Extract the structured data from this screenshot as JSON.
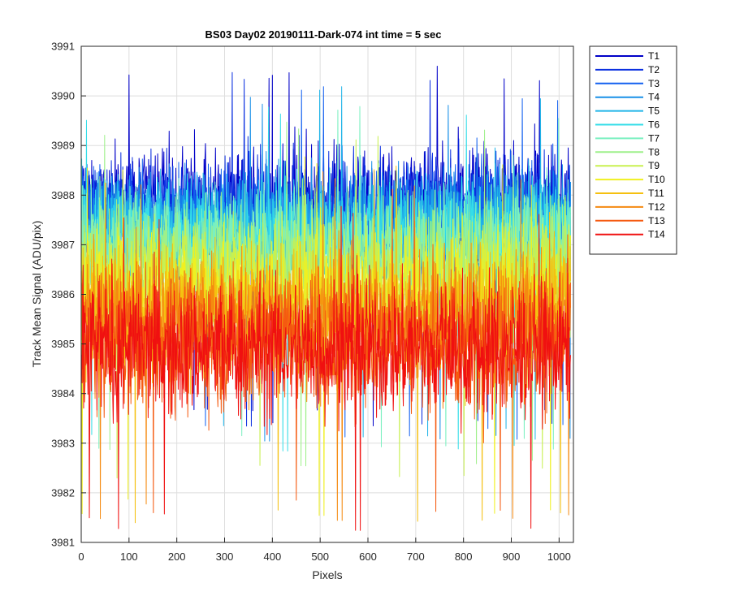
{
  "chart_data": {
    "type": "line",
    "title": "BS03 Day02 20190111-Dark-074 int time = 5 sec",
    "xlabel": "Pixels",
    "ylabel": "Track Mean Signal (ADU/pix)",
    "xlim": [
      0,
      1030
    ],
    "ylim": [
      3981,
      3991
    ],
    "xticks": [
      0,
      100,
      200,
      300,
      400,
      500,
      600,
      700,
      800,
      900,
      1000
    ],
    "yticks": [
      3981,
      3982,
      3983,
      3984,
      3985,
      3986,
      3987,
      3988,
      3989,
      3990,
      3991
    ],
    "grid": true,
    "legend_position": "outside-top-right",
    "x": {
      "start": 1,
      "end": 1024,
      "step": 1
    },
    "series": [
      {
        "name": "T1",
        "color": "#0000c8",
        "mean": 3987.9,
        "spread": 0.55,
        "min": 3983.3,
        "max": 3990.6
      },
      {
        "name": "T2",
        "color": "#0a2fe0",
        "mean": 3987.7,
        "spread": 0.55,
        "min": 3983.3,
        "max": 3990.5
      },
      {
        "name": "T3",
        "color": "#1260f0",
        "mean": 3987.5,
        "spread": 0.55,
        "min": 3983.0,
        "max": 3990.2
      },
      {
        "name": "T4",
        "color": "#1990e8",
        "mean": 3987.4,
        "spread": 0.55,
        "min": 3983.0,
        "max": 3990.0
      },
      {
        "name": "T5",
        "color": "#20b4e8",
        "mean": 3987.3,
        "spread": 0.55,
        "min": 3983.0,
        "max": 3990.2
      },
      {
        "name": "T6",
        "color": "#35dde8",
        "mean": 3987.2,
        "spread": 0.55,
        "min": 3982.8,
        "max": 3989.8
      },
      {
        "name": "T7",
        "color": "#7af0c0",
        "mean": 3987.0,
        "spread": 0.6,
        "min": 3982.8,
        "max": 3989.8
      },
      {
        "name": "T8",
        "color": "#9ef08a",
        "mean": 3986.7,
        "spread": 0.6,
        "min": 3982.5,
        "max": 3989.5
      },
      {
        "name": "T9",
        "color": "#c8f050",
        "mean": 3986.4,
        "spread": 0.6,
        "min": 3982.2,
        "max": 3989.2
      },
      {
        "name": "T10",
        "color": "#f0f020",
        "mean": 3986.0,
        "spread": 0.65,
        "min": 3981.5,
        "max": 3988.8
      },
      {
        "name": "T11",
        "color": "#f5c010",
        "mean": 3985.7,
        "spread": 0.65,
        "min": 3981.3,
        "max": 3988.6
      },
      {
        "name": "T12",
        "color": "#f58a10",
        "mean": 3985.4,
        "spread": 0.7,
        "min": 3981.4,
        "max": 3988.5
      },
      {
        "name": "T13",
        "color": "#f55a10",
        "mean": 3985.1,
        "spread": 0.7,
        "min": 3981.5,
        "max": 3988.2
      },
      {
        "name": "T14",
        "color": "#f01010",
        "mean": 3984.9,
        "spread": 0.7,
        "min": 3981.2,
        "max": 3987.8
      }
    ]
  }
}
